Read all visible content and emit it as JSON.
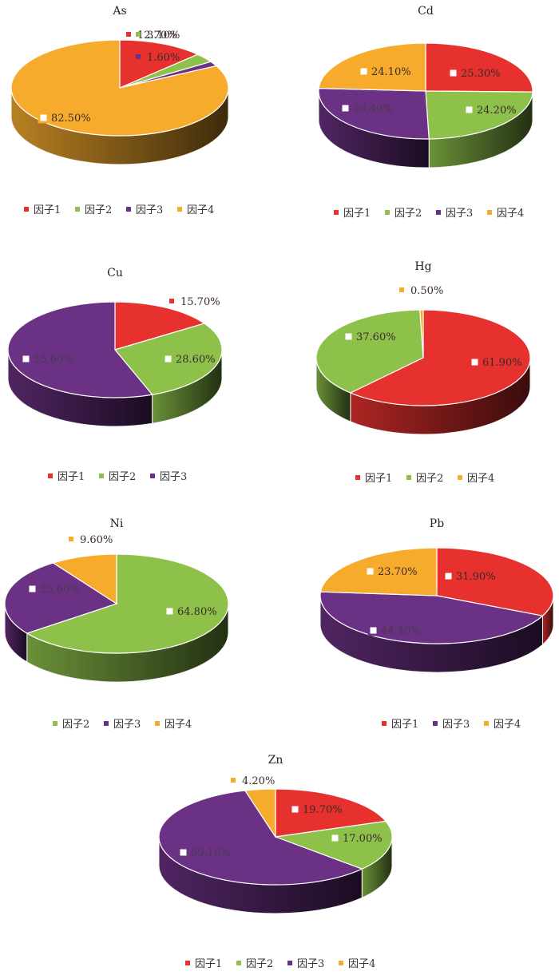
{
  "colors": {
    "因子1": "#e6312e",
    "因子2": "#8dc14a",
    "因子3": "#6a3184",
    "因子4": "#f6ab2d"
  },
  "chart_data": [
    {
      "type": "pie",
      "title": "As",
      "slices": [
        {
          "label": "因子1",
          "value": 12.7,
          "text": "12.70%"
        },
        {
          "label": "因子2",
          "value": 3.1,
          "text": "3.10%"
        },
        {
          "label": "因子3",
          "value": 1.6,
          "text": "1.60%"
        },
        {
          "label": "因子4",
          "value": 82.5,
          "text": "82.50%"
        }
      ],
      "legend": [
        "因子1",
        "因子2",
        "因子3",
        "因子4"
      ]
    },
    {
      "type": "pie",
      "title": "Cd",
      "slices": [
        {
          "label": "因子1",
          "value": 25.3,
          "text": "25.30%"
        },
        {
          "label": "因子2",
          "value": 24.2,
          "text": "24.20%"
        },
        {
          "label": "因子3",
          "value": 26.4,
          "text": "26.40%"
        },
        {
          "label": "因子4",
          "value": 24.1,
          "text": "24.10%"
        }
      ],
      "legend": [
        "因子1",
        "因子2",
        "因子3",
        "因子4"
      ]
    },
    {
      "type": "pie",
      "title": "Cu",
      "slices": [
        {
          "label": "因子1",
          "value": 15.7,
          "text": "15.70%"
        },
        {
          "label": "因子2",
          "value": 28.6,
          "text": "28.60%"
        },
        {
          "label": "因子3",
          "value": 55.6,
          "text": "55.60%"
        }
      ],
      "legend": [
        "因子1",
        "因子2",
        "因子3"
      ]
    },
    {
      "type": "pie",
      "title": "Hg",
      "slices": [
        {
          "label": "因子1",
          "value": 61.9,
          "text": "61.90%"
        },
        {
          "label": "因子2",
          "value": 37.6,
          "text": "37.60%"
        },
        {
          "label": "因子4",
          "value": 0.5,
          "text": "0.50%"
        }
      ],
      "legend": [
        "因子1",
        "因子2",
        "因子4"
      ]
    },
    {
      "type": "pie",
      "title": "Ni",
      "slices": [
        {
          "label": "因子2",
          "value": 64.8,
          "text": "64.80%"
        },
        {
          "label": "因子3",
          "value": 25.6,
          "text": "25.60%"
        },
        {
          "label": "因子4",
          "value": 9.6,
          "text": "9.60%"
        }
      ],
      "legend": [
        "因子2",
        "因子3",
        "因子4"
      ]
    },
    {
      "type": "pie",
      "title": "Pb",
      "slices": [
        {
          "label": "因子1",
          "value": 31.9,
          "text": "31.90%"
        },
        {
          "label": "因子3",
          "value": 44.4,
          "text": "44.40%"
        },
        {
          "label": "因子4",
          "value": 23.7,
          "text": "23.70%"
        }
      ],
      "legend": [
        "因子1",
        "因子3",
        "因子4"
      ]
    },
    {
      "type": "pie",
      "title": "Zn",
      "slices": [
        {
          "label": "因子1",
          "value": 19.7,
          "text": "19.70%"
        },
        {
          "label": "因子2",
          "value": 17.0,
          "text": "17.00%"
        },
        {
          "label": "因子3",
          "value": 59.1,
          "text": "59.10%"
        },
        {
          "label": "因子4",
          "value": 4.2,
          "text": "4.20%"
        }
      ],
      "legend": [
        "因子1",
        "因子2",
        "因子3",
        "因子4"
      ]
    }
  ]
}
